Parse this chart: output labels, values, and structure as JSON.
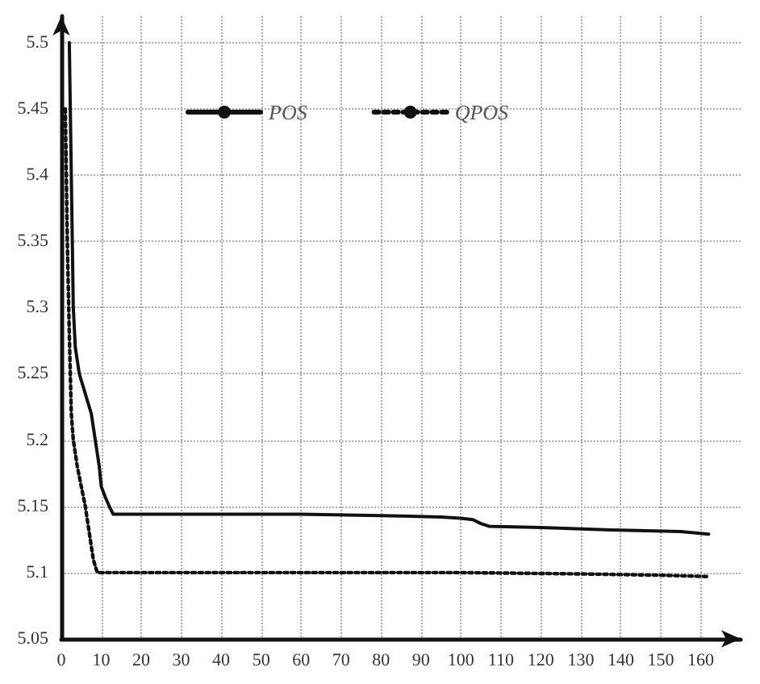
{
  "chart_data": {
    "type": "line",
    "xlim": [
      0,
      170
    ],
    "xticks": [
      0,
      10,
      20,
      30,
      40,
      50,
      60,
      70,
      80,
      90,
      100,
      110,
      120,
      130,
      140,
      150,
      160
    ],
    "ylim": [
      5.05,
      5.52
    ],
    "yticks": [
      5.05,
      5.1,
      5.15,
      5.2,
      5.25,
      5.3,
      5.35,
      5.4,
      5.45,
      5.5
    ],
    "grid": true,
    "legend": "top",
    "marker": "none",
    "series": [
      {
        "name": "POS",
        "color": "#111111",
        "line_style": "solid",
        "x": [
          2,
          2.5,
          3,
          3.5,
          4.5,
          6,
          7.5,
          8.5,
          9.5,
          10,
          11,
          12,
          13,
          20,
          40,
          60,
          80,
          95,
          100,
          103,
          105,
          107,
          120,
          140,
          155,
          162
        ],
        "values": [
          5.5,
          5.4,
          5.3,
          5.27,
          5.25,
          5.235,
          5.22,
          5.2,
          5.18,
          5.165,
          5.157,
          5.15,
          5.144,
          5.144,
          5.144,
          5.144,
          5.143,
          5.142,
          5.141,
          5.14,
          5.137,
          5.135,
          5.134,
          5.132,
          5.131,
          5.129
        ]
      },
      {
        "name": "QPOS",
        "color": "#111111",
        "line_style": "dotted",
        "x": [
          1,
          1.5,
          2,
          2.5,
          3,
          4,
          5,
          6,
          7,
          8,
          9,
          20,
          60,
          100,
          130,
          150,
          162
        ],
        "values": [
          5.45,
          5.35,
          5.28,
          5.22,
          5.2,
          5.18,
          5.165,
          5.15,
          5.13,
          5.11,
          5.1,
          5.1,
          5.1,
          5.1,
          5.099,
          5.098,
          5.097
        ]
      }
    ]
  }
}
